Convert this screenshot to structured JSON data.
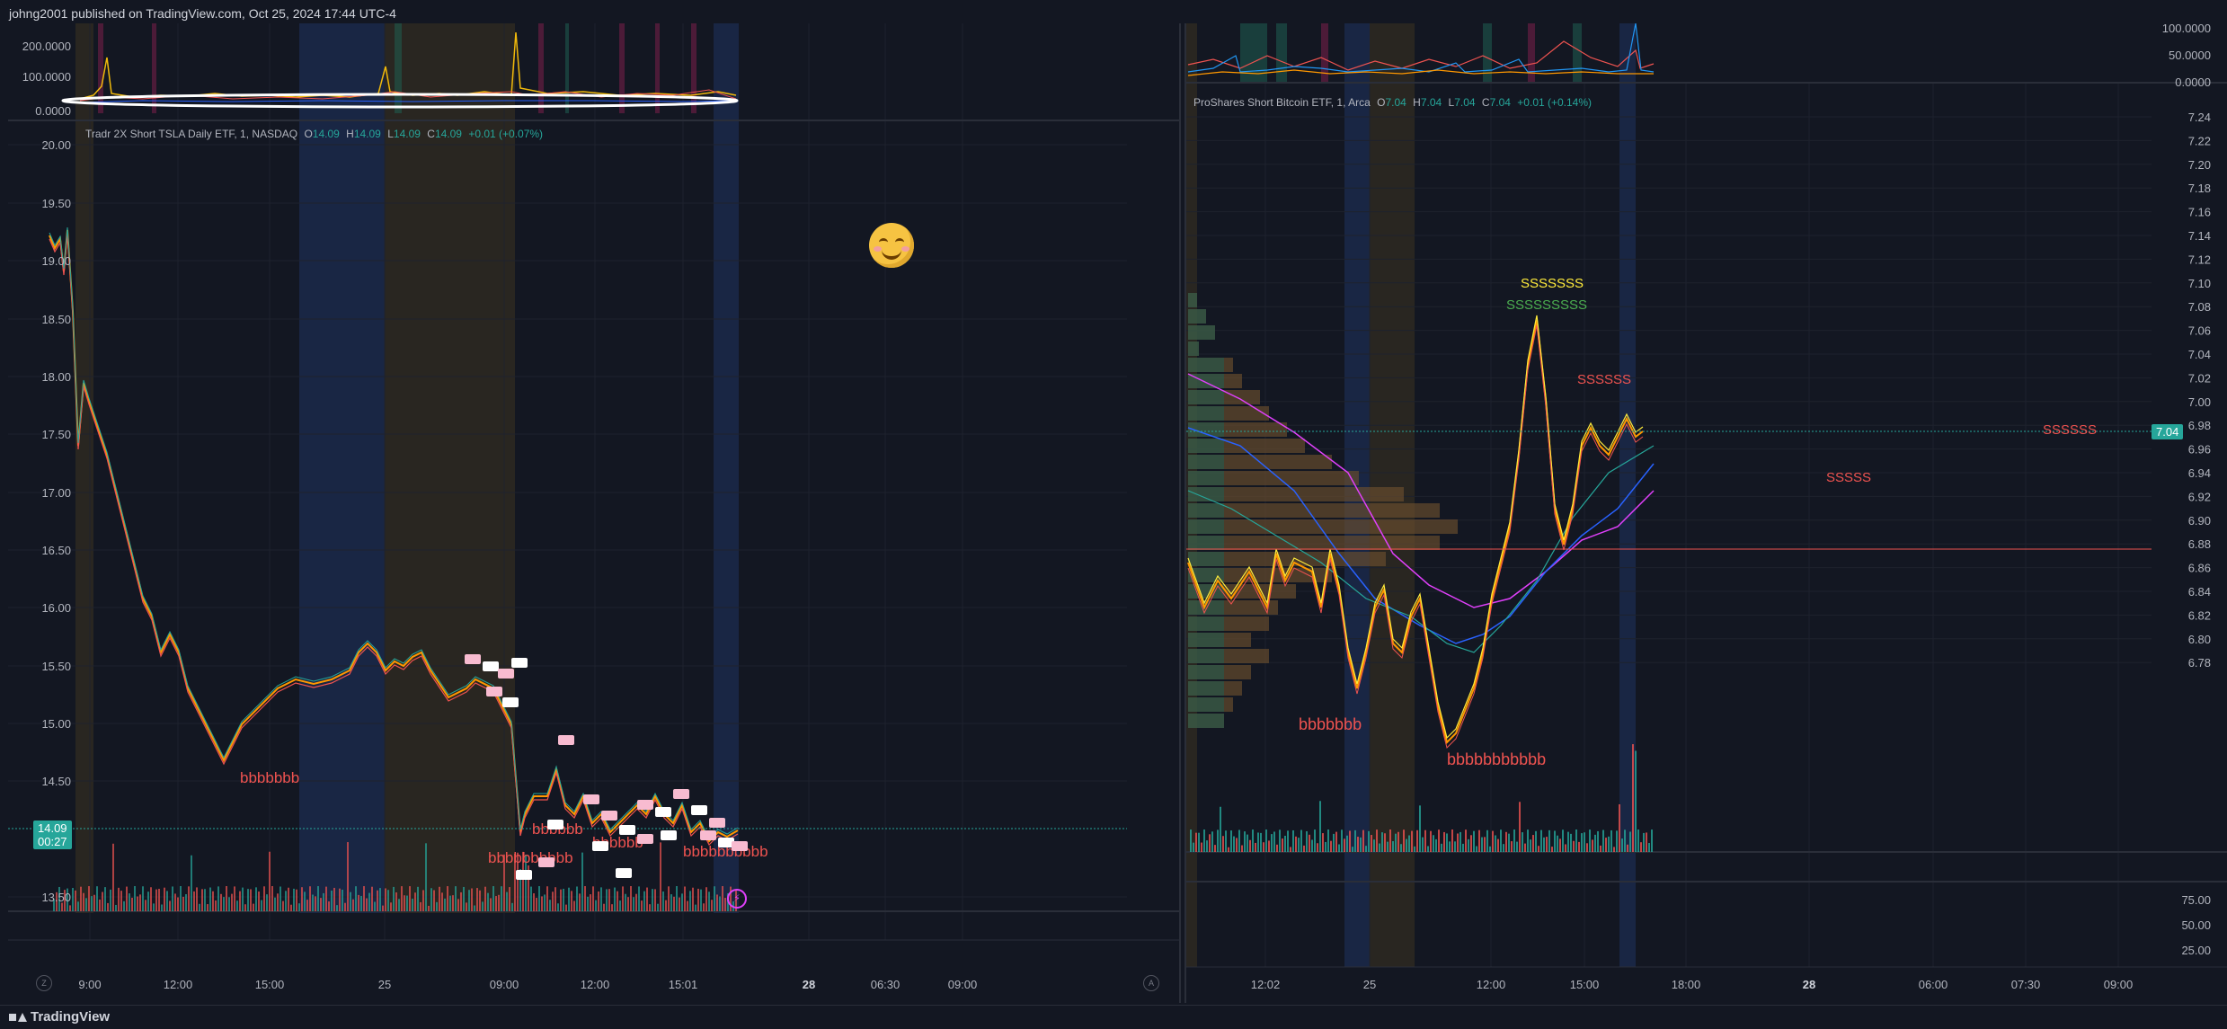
{
  "header": {
    "publish_text": "johng2001 published on TradingView.com, Oct 25, 2024 17:44 UTC-4"
  },
  "footer": {
    "brand": "TradingView"
  },
  "left_chart": {
    "legend": {
      "name": "Tradr 2X Short TSLA Daily ETF, 1, NASDAQ",
      "o_label": "O",
      "o": "14.09",
      "h_label": "H",
      "h": "14.09",
      "l_label": "L",
      "l": "14.09",
      "c_label": "C",
      "c": "14.09",
      "change": "+0.01 (+0.07%)"
    },
    "price_axis": [
      "20.00",
      "19.50",
      "19.00",
      "18.50",
      "18.00",
      "17.50",
      "17.00",
      "16.50",
      "16.00",
      "15.50",
      "15.00",
      "14.50",
      "13.50"
    ],
    "indicator_axis": [
      "200.0000",
      "100.0000",
      "0.0000"
    ],
    "price_tag": {
      "price": "14.09",
      "timer": "00:27"
    },
    "time_axis": [
      "9:00",
      "12:00",
      "15:00",
      "25",
      "09:00",
      "12:00",
      "15:01",
      "28",
      "06:30",
      "09:00"
    ],
    "annotations": [
      "bbbbbbb",
      "bbbbbbbbbb",
      "bbbbbb",
      "bbbbbb",
      "bbbbbbbbbb"
    ],
    "buttons": {
      "left": "Z",
      "right": "A",
      "alert": "⚡"
    }
  },
  "right_chart": {
    "legend": {
      "name": "ProShares Short Bitcoin ETF, 1, Arca",
      "o_label": "O",
      "o": "7.04",
      "h_label": "H",
      "h": "7.04",
      "l_label": "L",
      "l": "7.04",
      "c_label": "C",
      "c": "7.04",
      "change": "+0.01 (+0.14%)"
    },
    "price_axis": [
      "7.24",
      "7.22",
      "7.20",
      "7.18",
      "7.16",
      "7.14",
      "7.12",
      "7.10",
      "7.08",
      "7.06",
      "7.04",
      "7.02",
      "7.00",
      "6.98",
      "6.96",
      "6.94",
      "6.92",
      "6.90",
      "6.88",
      "6.86",
      "6.84",
      "6.82",
      "6.80",
      "6.78"
    ],
    "indicator_axis": [
      "100.0000",
      "50.0000",
      "0.0000"
    ],
    "lower_axis": [
      "75.00",
      "50.00",
      "25.00"
    ],
    "price_tag": "7.04",
    "time_axis": [
      "12:02",
      "25",
      "12:00",
      "15:00",
      "18:00",
      "28",
      "06:00",
      "07:30",
      "09:00"
    ],
    "annotations": [
      "SSSSSSS",
      "SSSSSSSSS",
      "SSSSSS",
      "SSSSSS",
      "SSSSS",
      "bbbbbbb",
      "bbbbbbbbbbb"
    ]
  },
  "colors": {
    "up": "#26a69a",
    "down": "#ef5350",
    "bg": "#131722",
    "grid": "#1e222d",
    "session_blue": "#1c2b4d",
    "session_brown": "#2f2a22"
  }
}
